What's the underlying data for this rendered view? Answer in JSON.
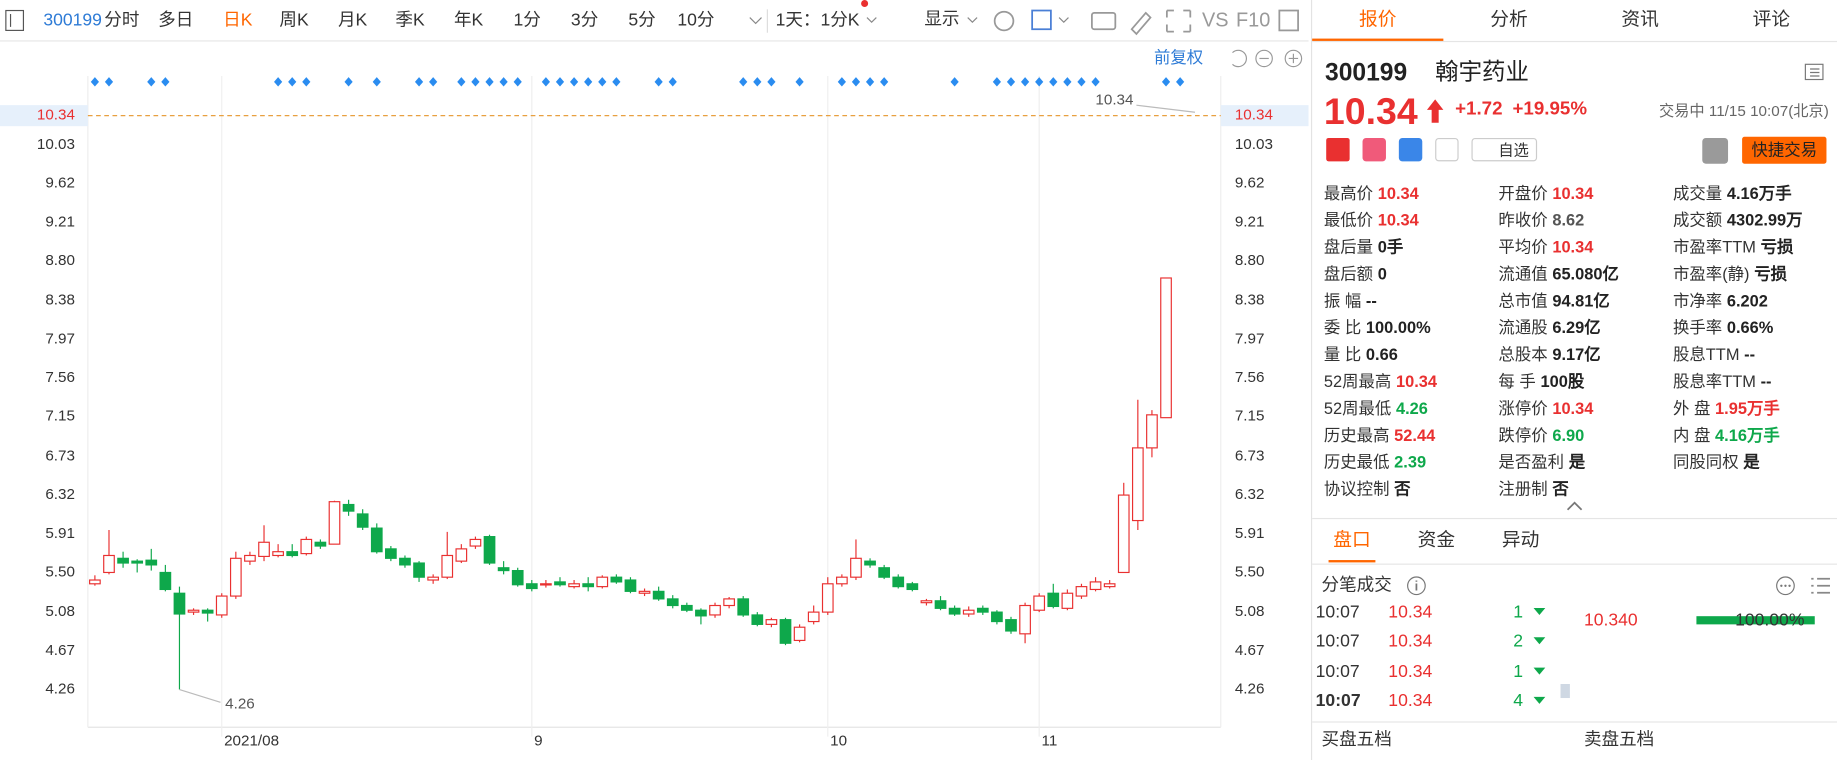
{
  "toolbar": {
    "code": "300199",
    "periods": [
      "分时",
      "多日",
      "日K",
      "周K",
      "月K",
      "季K",
      "年K",
      "1分",
      "3分",
      "5分",
      "10分"
    ],
    "active": 2,
    "range": "1天：1分K",
    "display": "显示",
    "tools": [
      "VS",
      "F10"
    ]
  },
  "chart_data": {
    "type": "candlestick",
    "adjust": "前复权",
    "categories": [
      null,
      null,
      null,
      null,
      null,
      null,
      null,
      null,
      null,
      "2021/08",
      null,
      null,
      null,
      null,
      null,
      null,
      null,
      null,
      null,
      null,
      null,
      null,
      null,
      null,
      null,
      null,
      null,
      null,
      null,
      null,
      null,
      "9",
      null,
      null,
      null,
      null,
      null,
      null,
      null,
      null,
      null,
      null,
      null,
      null,
      null,
      null,
      null,
      null,
      null,
      null,
      null,
      null,
      "10",
      null,
      null,
      null,
      null,
      null,
      null,
      null,
      null,
      null,
      null,
      null,
      null,
      null,
      null,
      "11",
      null,
      null,
      null,
      null,
      null,
      null,
      null,
      null,
      null
    ],
    "open": [
      5.38,
      5.5,
      5.65,
      5.62,
      5.63,
      5.5,
      5.28,
      5.08,
      5.1,
      5.05,
      5.25,
      5.62,
      5.67,
      5.68,
      5.72,
      5.7,
      5.82,
      5.8,
      6.22,
      6.12,
      5.97,
      5.75,
      5.65,
      5.6,
      5.42,
      5.45,
      5.62,
      5.78,
      5.88,
      5.55,
      5.52,
      5.38,
      5.37,
      5.4,
      5.35,
      5.38,
      5.35,
      5.45,
      5.42,
      5.28,
      5.3,
      5.22,
      5.15,
      5.1,
      5.05,
      5.15,
      5.22,
      5.05,
      4.95,
      5.0,
      4.78,
      4.98,
      5.08,
      5.38,
      5.45,
      5.62,
      5.55,
      5.45,
      5.38,
      5.18,
      5.2,
      5.12,
      5.06,
      5.12,
      5.08,
      5.0,
      4.85,
      5.1,
      5.28,
      5.12,
      5.25,
      5.32,
      5.35,
      5.5,
      6.05,
      6.82,
      7.14
    ],
    "high": [
      5.47,
      5.95,
      5.72,
      5.64,
      5.75,
      5.58,
      5.35,
      5.12,
      5.12,
      5.28,
      5.72,
      5.72,
      6.0,
      5.8,
      5.8,
      5.88,
      5.85,
      6.26,
      6.27,
      6.17,
      6.02,
      5.78,
      5.68,
      5.62,
      5.48,
      5.93,
      5.8,
      5.88,
      5.9,
      5.62,
      5.55,
      5.42,
      5.42,
      5.45,
      5.42,
      5.45,
      5.47,
      5.48,
      5.45,
      5.33,
      5.35,
      5.26,
      5.18,
      5.12,
      5.18,
      5.24,
      5.25,
      5.08,
      5.02,
      5.02,
      4.95,
      5.15,
      5.45,
      5.48,
      5.85,
      5.65,
      5.58,
      5.48,
      5.4,
      5.22,
      5.25,
      5.15,
      5.14,
      5.15,
      5.1,
      5.03,
      5.18,
      5.28,
      5.38,
      5.32,
      5.38,
      5.45,
      5.42,
      6.45,
      7.33,
      7.22,
      8.62
    ],
    "low": [
      5.36,
      5.48,
      5.55,
      5.5,
      5.52,
      5.3,
      4.26,
      5.05,
      4.98,
      5.02,
      5.22,
      5.58,
      5.62,
      5.66,
      5.66,
      5.68,
      5.75,
      5.8,
      6.1,
      5.95,
      5.7,
      5.62,
      5.55,
      5.4,
      5.38,
      5.43,
      5.6,
      5.75,
      5.58,
      5.48,
      5.35,
      5.3,
      5.34,
      5.35,
      5.33,
      5.3,
      5.33,
      5.38,
      5.28,
      5.25,
      5.2,
      5.12,
      5.08,
      4.95,
      5.02,
      5.12,
      5.03,
      4.93,
      4.92,
      4.73,
      4.76,
      4.95,
      5.05,
      5.35,
      5.42,
      5.55,
      5.43,
      5.33,
      5.3,
      5.15,
      5.1,
      5.04,
      5.03,
      5.05,
      4.95,
      4.85,
      4.75,
      5.08,
      5.12,
      5.1,
      5.22,
      5.3,
      5.33,
      5.5,
      5.95,
      6.72,
      7.14
    ],
    "close": [
      5.42,
      5.68,
      5.6,
      5.6,
      5.58,
      5.32,
      5.06,
      5.1,
      5.07,
      5.25,
      5.65,
      5.68,
      5.82,
      5.72,
      5.68,
      5.85,
      5.78,
      6.25,
      6.15,
      5.98,
      5.72,
      5.65,
      5.58,
      5.45,
      5.45,
      5.68,
      5.75,
      5.85,
      5.6,
      5.52,
      5.37,
      5.33,
      5.38,
      5.37,
      5.38,
      5.35,
      5.45,
      5.4,
      5.3,
      5.3,
      5.22,
      5.15,
      5.1,
      5.04,
      5.15,
      5.22,
      5.05,
      4.95,
      5.0,
      4.75,
      4.92,
      5.08,
      5.38,
      5.45,
      5.65,
      5.58,
      5.45,
      5.35,
      5.32,
      5.2,
      5.12,
      5.06,
      5.1,
      5.08,
      4.98,
      4.88,
      5.15,
      5.25,
      5.14,
      5.28,
      5.35,
      5.4,
      5.38,
      6.32,
      6.82,
      7.17,
      8.62
    ],
    "up_color": "#e93030",
    "down_color": "#0ea84b",
    "ylim": [
      3.86,
      10.76
    ],
    "yticks": [
      4.26,
      4.67,
      5.08,
      {
        "value": 5.5,
        "label": "5.50"
      },
      5.91,
      6.32,
      6.73,
      7.15,
      7.56,
      7.97,
      8.38,
      {
        "value": 8.8,
        "label": "8.80"
      },
      9.21,
      9.62,
      10.03
    ],
    "last_price": 10.34,
    "min_label": 4.26
  },
  "panel": {
    "tabs": [
      "报价",
      "分析",
      "资讯",
      "评论"
    ],
    "code": "300199",
    "name": "翰宇药业",
    "price": 10.34,
    "change": "+1.72",
    "change_pct": "+19.95%",
    "status": "交易中 11/15 10:07(北京)",
    "watch": "自选",
    "trade": "快捷交易",
    "columns": [
      [
        {
          "label": "最高价",
          "value": "10.34",
          "color": "#e93030"
        },
        {
          "label": "最低价",
          "value": "10.34",
          "color": "#e93030"
        },
        {
          "label": "盘后量",
          "value": "0手",
          "color": "#222"
        },
        {
          "label": "盘后额",
          "value": "0",
          "color": "#222"
        },
        {
          "label": "振 幅",
          "value": "--",
          "color": "#222"
        },
        {
          "label": "委 比",
          "value": "100.00%",
          "color": "#222"
        },
        {
          "label": "量 比",
          "value": "0.66",
          "color": "#222"
        },
        {
          "label": "52周最高",
          "value": "10.34",
          "color": "#e93030"
        },
        {
          "label": "52周最低",
          "value": "4.26",
          "color": "#0ea84b"
        },
        {
          "label": "历史最高",
          "value": "52.44",
          "color": "#e93030"
        },
        {
          "label": "历史最低",
          "value": "2.39",
          "color": "#0ea84b"
        },
        {
          "label": "协议控制",
          "value": "否",
          "color": "#222"
        }
      ],
      [
        {
          "label": "开盘价",
          "value": "10.34",
          "color": "#e93030"
        },
        {
          "label": "昨收价",
          "value": "8.62",
          "color": "#555"
        },
        {
          "label": "平均价",
          "value": "10.34",
          "color": "#e93030"
        },
        {
          "label": "流通值",
          "value": "65.080亿",
          "color": "#222"
        },
        {
          "label": "总市值",
          "value": "94.81亿",
          "color": "#222"
        },
        {
          "label": "流通股",
          "value": "6.29亿",
          "color": "#222"
        },
        {
          "label": "总股本",
          "value": "9.17亿",
          "color": "#222"
        },
        {
          "label": "每 手",
          "value": "100股",
          "color": "#222"
        },
        {
          "label": "涨停价",
          "value": "10.34",
          "color": "#e93030"
        },
        {
          "label": "跌停价",
          "value": "6.90",
          "color": "#0ea84b"
        },
        {
          "label": "是否盈利",
          "value": "是",
          "color": "#222"
        },
        {
          "label": "注册制",
          "value": "否",
          "color": "#222"
        }
      ],
      [
        {
          "label": "成交量",
          "value": "4.16万手",
          "color": "#222"
        },
        {
          "label": "成交额",
          "value": "4302.99万",
          "color": "#222"
        },
        {
          "label": "市盈率TTM",
          "value": "亏损",
          "color": "#222"
        },
        {
          "label": "市盈率(静)",
          "value": "亏损",
          "color": "#222"
        },
        {
          "label": "市净率",
          "value": "6.202",
          "color": "#222"
        },
        {
          "label": "换手率",
          "value": "0.66%",
          "color": "#222"
        },
        {
          "label": "股息TTM",
          "value": "--",
          "color": "#222"
        },
        {
          "label": "股息率TTM",
          "value": "--",
          "color": "#222"
        },
        {
          "label": "外 盘",
          "value": "1.95万手",
          "color": "#e93030"
        },
        {
          "label": "内 盘",
          "value": "4.16万手",
          "color": "#0ea84b"
        },
        {
          "label": "同股同权",
          "value": "是",
          "color": "#222"
        }
      ]
    ],
    "sub_tabs": [
      "盘口",
      "资金",
      "异动"
    ],
    "ticks_title": "分笔成交",
    "trades": [
      {
        "time": "10:07",
        "price": "10.34",
        "volume": "1"
      },
      {
        "time": "10:07",
        "price": "10.34",
        "volume": "2"
      },
      {
        "time": "10:07",
        "price": "10.34",
        "volume": "1"
      },
      {
        "time": "10:07",
        "price": "10.34",
        "volume": "4"
      }
    ],
    "depth_price": "10.340",
    "depth_pct": "100.00%",
    "book_titles": [
      "买盘五档",
      "卖盘五档"
    ]
  }
}
